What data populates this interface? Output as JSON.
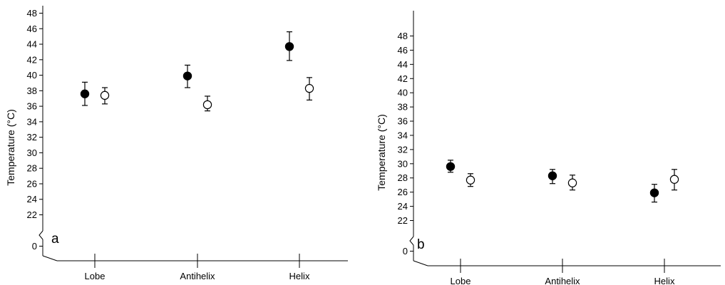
{
  "chart_data": [
    {
      "type": "scatter",
      "panel_label": "a",
      "ylabel": "Temperature (°C)",
      "ylim": [
        20,
        49
      ],
      "y_axis_break": true,
      "yticks": [
        "22",
        "24",
        "26",
        "28",
        "30",
        "32",
        "34",
        "36",
        "38",
        "40",
        "42",
        "44",
        "46",
        "48"
      ],
      "y_zero_label": "0",
      "categories": [
        "Lobe",
        "Antihelix",
        "Helix"
      ],
      "series": [
        {
          "marker": "filled-circle",
          "color": "#000000",
          "values": [
            37.6,
            39.9,
            43.7
          ],
          "error_low": [
            36.1,
            38.4,
            41.9
          ],
          "error_high": [
            39.1,
            41.3,
            45.6
          ]
        },
        {
          "marker": "open-circle",
          "color": "#000000",
          "values": [
            37.4,
            36.2,
            38.3
          ],
          "error_low": [
            36.3,
            35.4,
            36.8
          ],
          "error_high": [
            38.4,
            37.3,
            39.7
          ]
        }
      ],
      "grid": false
    },
    {
      "type": "scatter",
      "panel_label": "b",
      "ylabel": "Temperature (°C)",
      "ylim": [
        20,
        49
      ],
      "y_axis_break": true,
      "yticks": [
        "22",
        "24",
        "26",
        "28",
        "30",
        "32",
        "34",
        "36",
        "38",
        "40",
        "42",
        "44",
        "46",
        "48"
      ],
      "y_zero_label": "0",
      "categories": [
        "Lobe",
        "Antihelix",
        "Helix"
      ],
      "series": [
        {
          "marker": "filled-circle",
          "color": "#000000",
          "values": [
            29.6,
            28.3,
            25.9
          ],
          "error_low": [
            28.8,
            27.2,
            24.6
          ],
          "error_high": [
            30.5,
            29.2,
            27.1
          ]
        },
        {
          "marker": "open-circle",
          "color": "#000000",
          "values": [
            27.7,
            27.3,
            27.8
          ],
          "error_low": [
            26.8,
            26.3,
            26.3
          ],
          "error_high": [
            28.6,
            28.4,
            29.2
          ]
        }
      ],
      "grid": false
    }
  ]
}
